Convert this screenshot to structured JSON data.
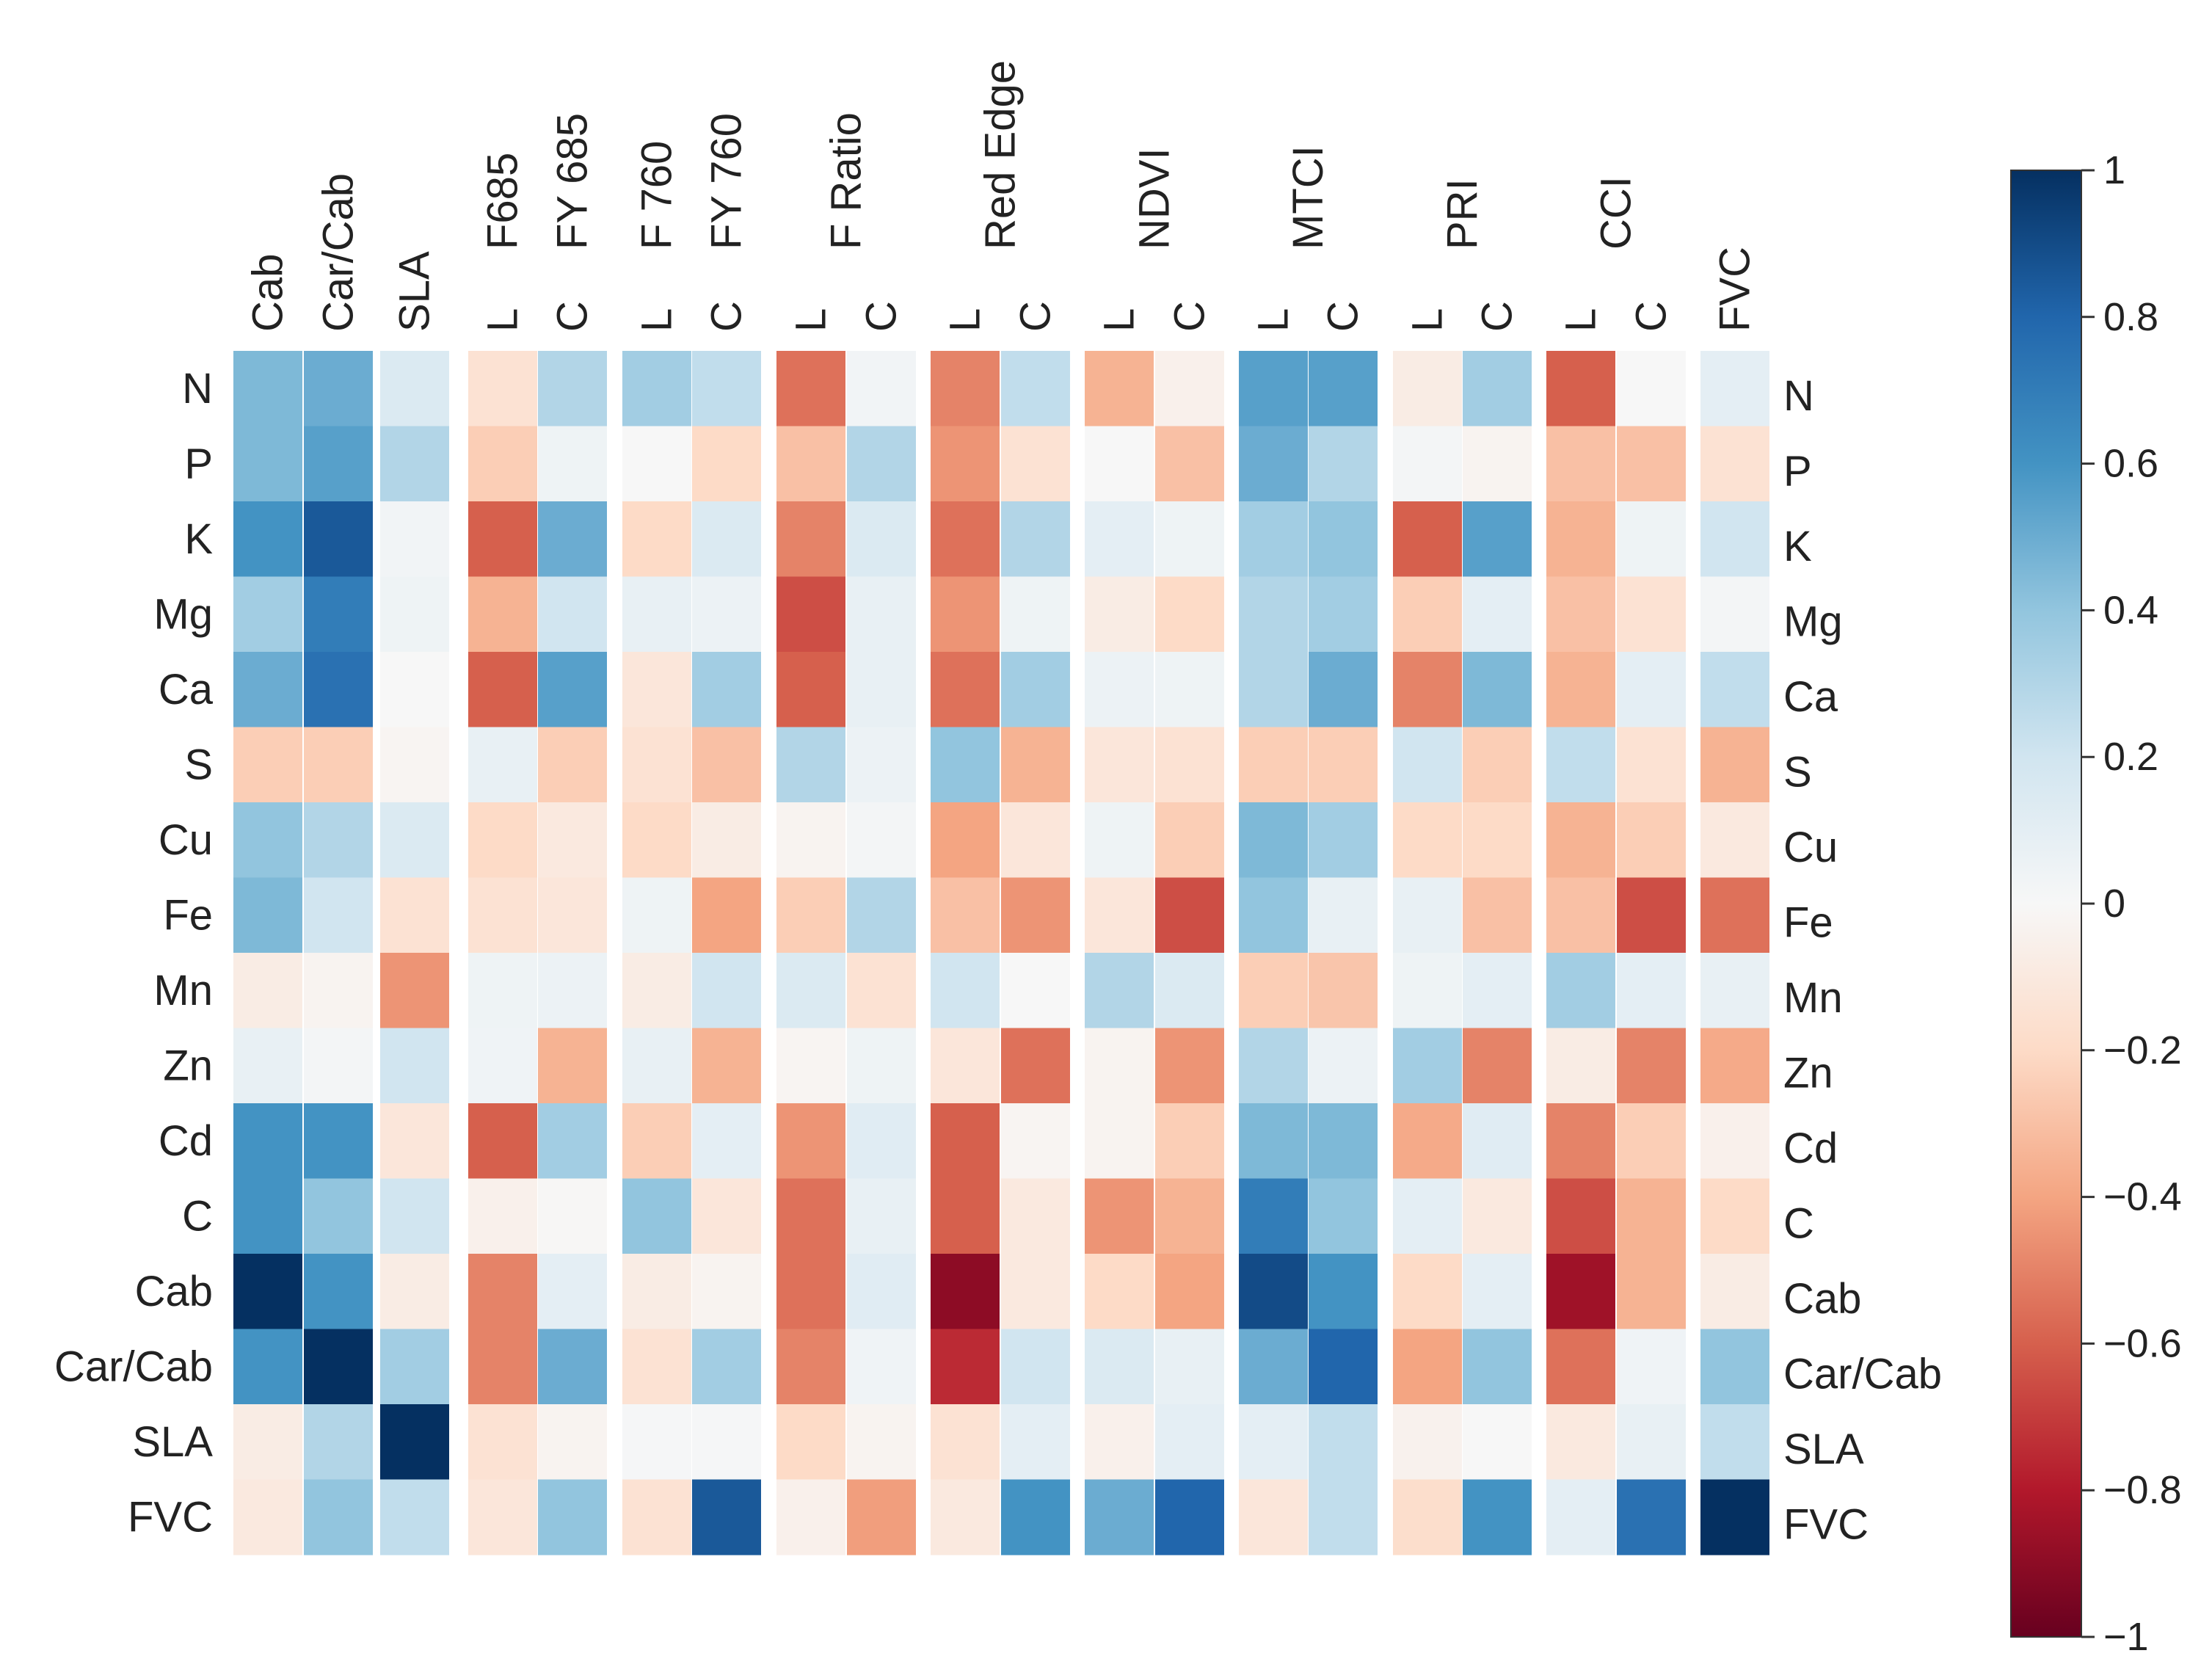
{
  "chart_data": {
    "type": "heatmap",
    "title": "",
    "columns": [
      "Cab",
      "Car/Cab",
      "SLA",
      "L",
      "C",
      "L",
      "C",
      "L",
      "C",
      "L",
      "C",
      "L",
      "C",
      "L",
      "C",
      "L",
      "C",
      "L",
      "C",
      "FVC"
    ],
    "column_groups": [
      {
        "label": "Cab",
        "columns": [
          0
        ]
      },
      {
        "label": "Car/Cab",
        "columns": [
          1
        ]
      },
      {
        "label": "SLA",
        "columns": [
          2
        ]
      },
      {
        "label": "F685",
        "columns": [
          3
        ]
      },
      {
        "label": "FY 685",
        "columns": [
          4
        ]
      },
      {
        "label": "F 760",
        "columns": [
          5
        ]
      },
      {
        "label": "FY 760",
        "columns": [
          6
        ]
      },
      {
        "label": "F Ratio",
        "columns": [
          7,
          8
        ]
      },
      {
        "label": "Red Edge",
        "columns": [
          9,
          10
        ]
      },
      {
        "label": "NDVI",
        "columns": [
          11,
          12
        ]
      },
      {
        "label": "MTCI",
        "columns": [
          13,
          14
        ]
      },
      {
        "label": "PRI",
        "columns": [
          15,
          16
        ]
      },
      {
        "label": "CCI",
        "columns": [
          17,
          18
        ]
      },
      {
        "label": "FVC",
        "columns": [
          19
        ]
      }
    ],
    "rows": [
      "N",
      "P",
      "K",
      "Mg",
      "Ca",
      "S",
      "Cu",
      "Fe",
      "Mn",
      "Zn",
      "Cd",
      "C",
      "Cab",
      "Car/Cab",
      "SLA",
      "FVC"
    ],
    "values": [
      [
        0.45,
        0.5,
        0.15,
        -0.15,
        0.3,
        0.35,
        0.25,
        -0.55,
        0.03,
        -0.5,
        0.25,
        -0.35,
        -0.05,
        0.55,
        0.55,
        -0.08,
        0.35,
        -0.6,
        0.0,
        0.1
      ],
      [
        0.45,
        0.55,
        0.3,
        -0.25,
        0.05,
        0.0,
        -0.2,
        -0.3,
        0.3,
        -0.45,
        -0.15,
        0.0,
        -0.3,
        0.5,
        0.3,
        0.02,
        -0.03,
        -0.3,
        -0.3,
        -0.15
      ],
      [
        0.6,
        0.85,
        0.03,
        -0.6,
        0.5,
        -0.2,
        0.15,
        -0.5,
        0.15,
        -0.55,
        0.3,
        0.1,
        0.05,
        0.35,
        0.4,
        -0.6,
        0.55,
        -0.35,
        0.05,
        0.2
      ],
      [
        0.35,
        0.7,
        0.05,
        -0.35,
        0.2,
        0.08,
        0.06,
        -0.65,
        0.08,
        -0.45,
        0.05,
        -0.08,
        -0.2,
        0.3,
        0.35,
        -0.25,
        0.1,
        -0.3,
        -0.15,
        0.02
      ],
      [
        0.5,
        0.75,
        0.0,
        -0.6,
        0.55,
        -0.12,
        0.35,
        -0.6,
        0.08,
        -0.55,
        0.35,
        0.06,
        0.05,
        0.3,
        0.5,
        -0.5,
        0.45,
        -0.35,
        0.1,
        0.25
      ],
      [
        -0.25,
        -0.25,
        -0.02,
        0.08,
        -0.25,
        -0.15,
        -0.3,
        0.3,
        0.06,
        0.4,
        -0.35,
        -0.12,
        -0.15,
        -0.25,
        -0.25,
        0.2,
        -0.25,
        0.25,
        -0.15,
        -0.35
      ],
      [
        0.4,
        0.3,
        0.15,
        -0.2,
        -0.1,
        -0.2,
        -0.08,
        -0.03,
        0.02,
        -0.4,
        -0.12,
        0.05,
        -0.25,
        0.45,
        0.35,
        -0.2,
        -0.2,
        -0.35,
        -0.25,
        -0.1
      ],
      [
        0.45,
        0.2,
        -0.15,
        -0.15,
        -0.12,
        0.05,
        -0.4,
        -0.25,
        0.3,
        -0.3,
        -0.45,
        -0.12,
        -0.65,
        0.4,
        0.08,
        0.08,
        -0.3,
        -0.3,
        -0.65,
        -0.55
      ],
      [
        -0.08,
        -0.03,
        -0.45,
        0.05,
        0.06,
        -0.08,
        0.2,
        0.15,
        -0.15,
        0.2,
        0.0,
        0.3,
        0.15,
        -0.25,
        -0.28,
        0.05,
        0.1,
        0.35,
        0.1,
        0.08
      ],
      [
        0.08,
        0.02,
        0.2,
        0.04,
        -0.35,
        0.08,
        -0.35,
        -0.02,
        0.05,
        -0.12,
        -0.55,
        -0.03,
        -0.45,
        0.3,
        0.06,
        0.35,
        -0.5,
        -0.08,
        -0.5,
        -0.38
      ],
      [
        0.6,
        0.6,
        -0.12,
        -0.6,
        0.35,
        -0.25,
        0.1,
        -0.45,
        0.12,
        -0.6,
        -0.02,
        -0.03,
        -0.25,
        0.45,
        0.45,
        -0.38,
        0.12,
        -0.5,
        -0.25,
        -0.05
      ],
      [
        0.6,
        0.4,
        0.2,
        -0.05,
        -0.01,
        0.4,
        -0.12,
        -0.55,
        0.08,
        -0.6,
        -0.1,
        -0.45,
        -0.35,
        0.7,
        0.4,
        0.1,
        -0.1,
        -0.65,
        -0.35,
        -0.2
      ],
      [
        1.0,
        0.6,
        -0.08,
        -0.5,
        0.1,
        -0.08,
        -0.03,
        -0.55,
        0.12,
        -0.9,
        -0.1,
        -0.2,
        -0.4,
        0.9,
        0.6,
        -0.2,
        0.1,
        -0.85,
        -0.35,
        -0.08
      ],
      [
        0.6,
        1.0,
        0.35,
        -0.5,
        0.5,
        -0.15,
        0.35,
        -0.5,
        0.04,
        -0.75,
        0.2,
        0.15,
        0.08,
        0.5,
        0.8,
        -0.4,
        0.4,
        -0.55,
        0.04,
        0.4
      ],
      [
        -0.08,
        0.3,
        1.0,
        -0.15,
        -0.03,
        0.01,
        0.01,
        -0.2,
        -0.03,
        -0.15,
        0.1,
        -0.05,
        0.1,
        0.1,
        0.25,
        -0.04,
        0.0,
        -0.1,
        0.08,
        0.25
      ],
      [
        -0.1,
        0.4,
        0.25,
        -0.12,
        0.4,
        -0.15,
        0.85,
        -0.05,
        -0.42,
        -0.1,
        0.6,
        0.5,
        0.8,
        -0.12,
        0.25,
        -0.18,
        0.6,
        0.1,
        0.75,
        1.0
      ]
    ],
    "colorbar": {
      "range": [
        -1,
        1
      ],
      "colormap": "RdBu",
      "ticks": [
        1,
        0.8,
        0.6,
        0.4,
        0.2,
        0,
        -0.2,
        -0.4,
        -0.6,
        -0.8,
        -1
      ],
      "tick_labels": [
        "1",
        "0.8",
        "0.6",
        "0.4",
        "0.2",
        "0",
        "−0.2",
        "−0.4",
        "−0.6",
        "−0.8",
        "−1"
      ]
    }
  }
}
